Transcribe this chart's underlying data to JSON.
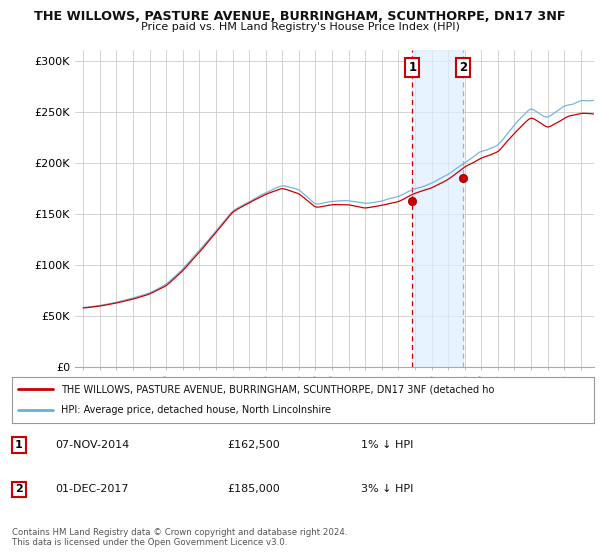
{
  "title": "THE WILLOWS, PASTURE AVENUE, BURRINGHAM, SCUNTHORPE, DN17 3NF",
  "subtitle": "Price paid vs. HM Land Registry's House Price Index (HPI)",
  "ylabel_ticks": [
    "£0",
    "£50K",
    "£100K",
    "£150K",
    "£200K",
    "£250K",
    "£300K"
  ],
  "ytick_vals": [
    0,
    50000,
    100000,
    150000,
    200000,
    250000,
    300000
  ],
  "ylim": [
    0,
    310000
  ],
  "background_color": "#ffffff",
  "grid_color": "#cccccc",
  "legend_entry1": "THE WILLOWS, PASTURE AVENUE, BURRINGHAM, SCUNTHORPE, DN17 3NF (detached ho",
  "legend_entry2": "HPI: Average price, detached house, North Lincolnshire",
  "sale1_x": 2014.85,
  "sale1_price": 162500,
  "sale2_x": 2017.92,
  "sale2_price": 185000,
  "sale1_date_str": "07-NOV-2014",
  "sale1_price_str": "£162,500",
  "sale1_hpi_str": "1% ↓ HPI",
  "sale2_date_str": "01-DEC-2017",
  "sale2_price_str": "£185,000",
  "sale2_hpi_str": "3% ↓ HPI",
  "footer": "Contains HM Land Registry data © Crown copyright and database right 2024.\nThis data is licensed under the Open Government Licence v3.0.",
  "hpi_color": "#6baed6",
  "price_color": "#cc0000",
  "sale_dot_color": "#cc0000",
  "shade_color": "#ddeeff",
  "shade_alpha": 0.7,
  "vline1_color": "#cc0000",
  "vline2_color": "#aaaacc",
  "xlim_left": 1994.5,
  "xlim_right": 2025.8
}
